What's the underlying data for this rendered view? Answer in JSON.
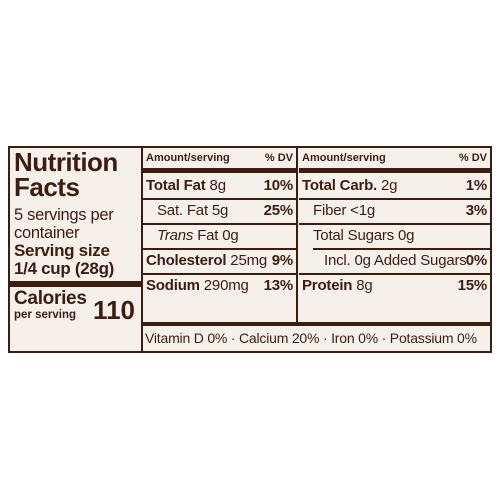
{
  "label": {
    "title_line1": "Nutrition",
    "title_line2": "Facts",
    "servings_line1": "5 servings per",
    "servings_line2": "container",
    "serving_size_line1": "Serving size",
    "serving_size_line2": "1/4 cup (28g)",
    "calories_label": "Calories",
    "calories_sub": "per serving",
    "calories_value": "110"
  },
  "left_table": {
    "header_amount": "Amount/serving",
    "header_dv": "% DV",
    "rows": [
      {
        "name": "Total Fat",
        "amount": " 8g",
        "dv": "10%"
      },
      {
        "name": "Sat. Fat",
        "amount": " 5g",
        "dv": "25%"
      },
      {
        "name": "Trans",
        "amount": " Fat 0g",
        "dv": ""
      },
      {
        "name": "Cholesterol",
        "amount": " 25mg",
        "dv": "9%"
      },
      {
        "name": "Sodium",
        "amount": " 290mg",
        "dv": "13%"
      }
    ]
  },
  "right_table": {
    "header_amount": "Amount/serving",
    "header_dv": "% DV",
    "rows": [
      {
        "name": "Total Carb.",
        "amount": " 2g",
        "dv": "1%"
      },
      {
        "name": "Fiber",
        "amount": " <1g",
        "dv": "3%"
      },
      {
        "name": "Total Sugars",
        "amount": " 0g",
        "dv": ""
      },
      {
        "name": "Incl. 0g Added Sugars",
        "amount": "",
        "dv": "0%"
      },
      {
        "name": "Protein",
        "amount": " 8g",
        "dv": "15%"
      }
    ]
  },
  "vitamins_line": "Vitamin D 0% · Calcium 20% · Iron 0% · Potassium 0%",
  "colors": {
    "ink": "#3b1d14",
    "panel_background": "#f6f0ea"
  }
}
